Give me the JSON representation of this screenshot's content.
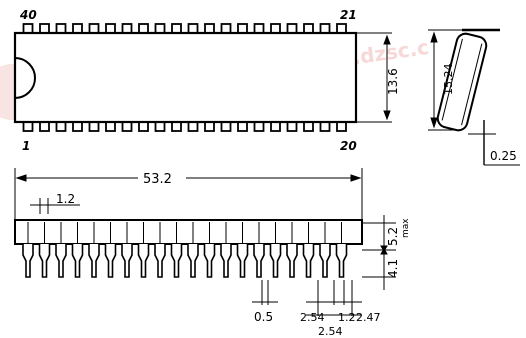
{
  "pin_labels": {
    "top_left": "40",
    "top_right": "21",
    "bottom_left": "1",
    "bottom_right": "20"
  },
  "dimensions": {
    "body_width": "13.6",
    "lead_span": "15.24",
    "lead_thickness": "0.25",
    "overall_length": "53.2",
    "end_offset": "1.2",
    "lead_width": "0.5",
    "pitch_left": "2.54",
    "pitch_right": "2.54",
    "wide_lead": "1.2",
    "inner_pitch": "2.47",
    "lead_length": "4.1",
    "max_height": "5.2",
    "max_label": "max"
  },
  "watermark": {
    "text": "维库",
    "url_fragment": "www.dzsc.c"
  },
  "colors": {
    "ink": "#000000",
    "watermark": "#f1b8b8"
  }
}
